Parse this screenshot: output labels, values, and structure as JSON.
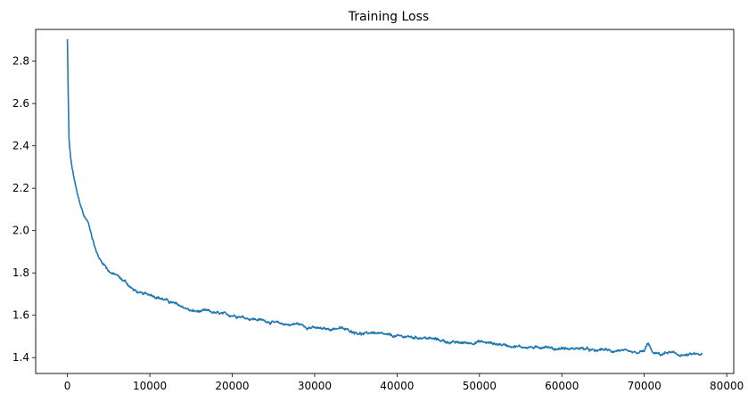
{
  "chart_data": {
    "type": "line",
    "title": "Training Loss",
    "xlabel": "",
    "ylabel": "",
    "xlim": [
      -3850,
      80850
    ],
    "ylim": [
      1.325,
      2.95
    ],
    "x_ticks": [
      0,
      10000,
      20000,
      30000,
      40000,
      50000,
      60000,
      70000,
      80000
    ],
    "y_ticks": [
      1.4,
      1.6,
      1.8,
      2.0,
      2.2,
      2.4,
      2.6,
      2.8
    ],
    "grid": false,
    "legend": "none",
    "series": [
      {
        "color": "#1f77b4",
        "points": [
          [
            0,
            2.905
          ],
          [
            100,
            2.64
          ],
          [
            200,
            2.43
          ],
          [
            400,
            2.34
          ],
          [
            600,
            2.29
          ],
          [
            800,
            2.25
          ],
          [
            1000,
            2.21
          ],
          [
            1300,
            2.16
          ],
          [
            1600,
            2.12
          ],
          [
            2000,
            2.07
          ],
          [
            2500,
            2.04
          ],
          [
            3000,
            1.97
          ],
          [
            3500,
            1.9
          ],
          [
            4000,
            1.86
          ],
          [
            4500,
            1.84
          ],
          [
            5000,
            1.81
          ],
          [
            5500,
            1.795
          ],
          [
            6000,
            1.79
          ],
          [
            6500,
            1.77
          ],
          [
            7000,
            1.76
          ],
          [
            7500,
            1.74
          ],
          [
            8000,
            1.72
          ],
          [
            9000,
            1.7
          ],
          [
            10000,
            1.7
          ],
          [
            11000,
            1.685
          ],
          [
            12000,
            1.67
          ],
          [
            13000,
            1.655
          ],
          [
            14000,
            1.64
          ],
          [
            15000,
            1.62
          ],
          [
            16000,
            1.618
          ],
          [
            17000,
            1.62
          ],
          [
            18000,
            1.61
          ],
          [
            19000,
            1.605
          ],
          [
            20000,
            1.6
          ],
          [
            21000,
            1.595
          ],
          [
            22000,
            1.585
          ],
          [
            23000,
            1.58
          ],
          [
            24000,
            1.575
          ],
          [
            25000,
            1.565
          ],
          [
            26000,
            1.56
          ],
          [
            27000,
            1.555
          ],
          [
            28000,
            1.56
          ],
          [
            29000,
            1.545
          ],
          [
            30000,
            1.54
          ],
          [
            31000,
            1.535
          ],
          [
            32000,
            1.535
          ],
          [
            33000,
            1.54
          ],
          [
            34000,
            1.53
          ],
          [
            35000,
            1.52
          ],
          [
            36000,
            1.51
          ],
          [
            37000,
            1.52
          ],
          [
            38000,
            1.51
          ],
          [
            39000,
            1.505
          ],
          [
            40000,
            1.5
          ],
          [
            41000,
            1.5
          ],
          [
            42000,
            1.495
          ],
          [
            43000,
            1.495
          ],
          [
            44000,
            1.49
          ],
          [
            45000,
            1.485
          ],
          [
            46000,
            1.475
          ],
          [
            47000,
            1.47
          ],
          [
            48000,
            1.47
          ],
          [
            49000,
            1.47
          ],
          [
            50000,
            1.475
          ],
          [
            51000,
            1.47
          ],
          [
            52000,
            1.465
          ],
          [
            53000,
            1.46
          ],
          [
            54000,
            1.455
          ],
          [
            55000,
            1.45
          ],
          [
            56000,
            1.45
          ],
          [
            57000,
            1.445
          ],
          [
            58000,
            1.455
          ],
          [
            59000,
            1.44
          ],
          [
            60000,
            1.445
          ],
          [
            61000,
            1.44
          ],
          [
            62000,
            1.445
          ],
          [
            63000,
            1.44
          ],
          [
            64000,
            1.43
          ],
          [
            65000,
            1.44
          ],
          [
            66000,
            1.43
          ],
          [
            67000,
            1.435
          ],
          [
            68000,
            1.425
          ],
          [
            69000,
            1.42
          ],
          [
            70000,
            1.43
          ],
          [
            70500,
            1.47
          ],
          [
            71000,
            1.42
          ],
          [
            72000,
            1.415
          ],
          [
            73000,
            1.425
          ],
          [
            74000,
            1.415
          ],
          [
            75000,
            1.41
          ],
          [
            76000,
            1.415
          ],
          [
            77000,
            1.415
          ]
        ]
      }
    ]
  }
}
